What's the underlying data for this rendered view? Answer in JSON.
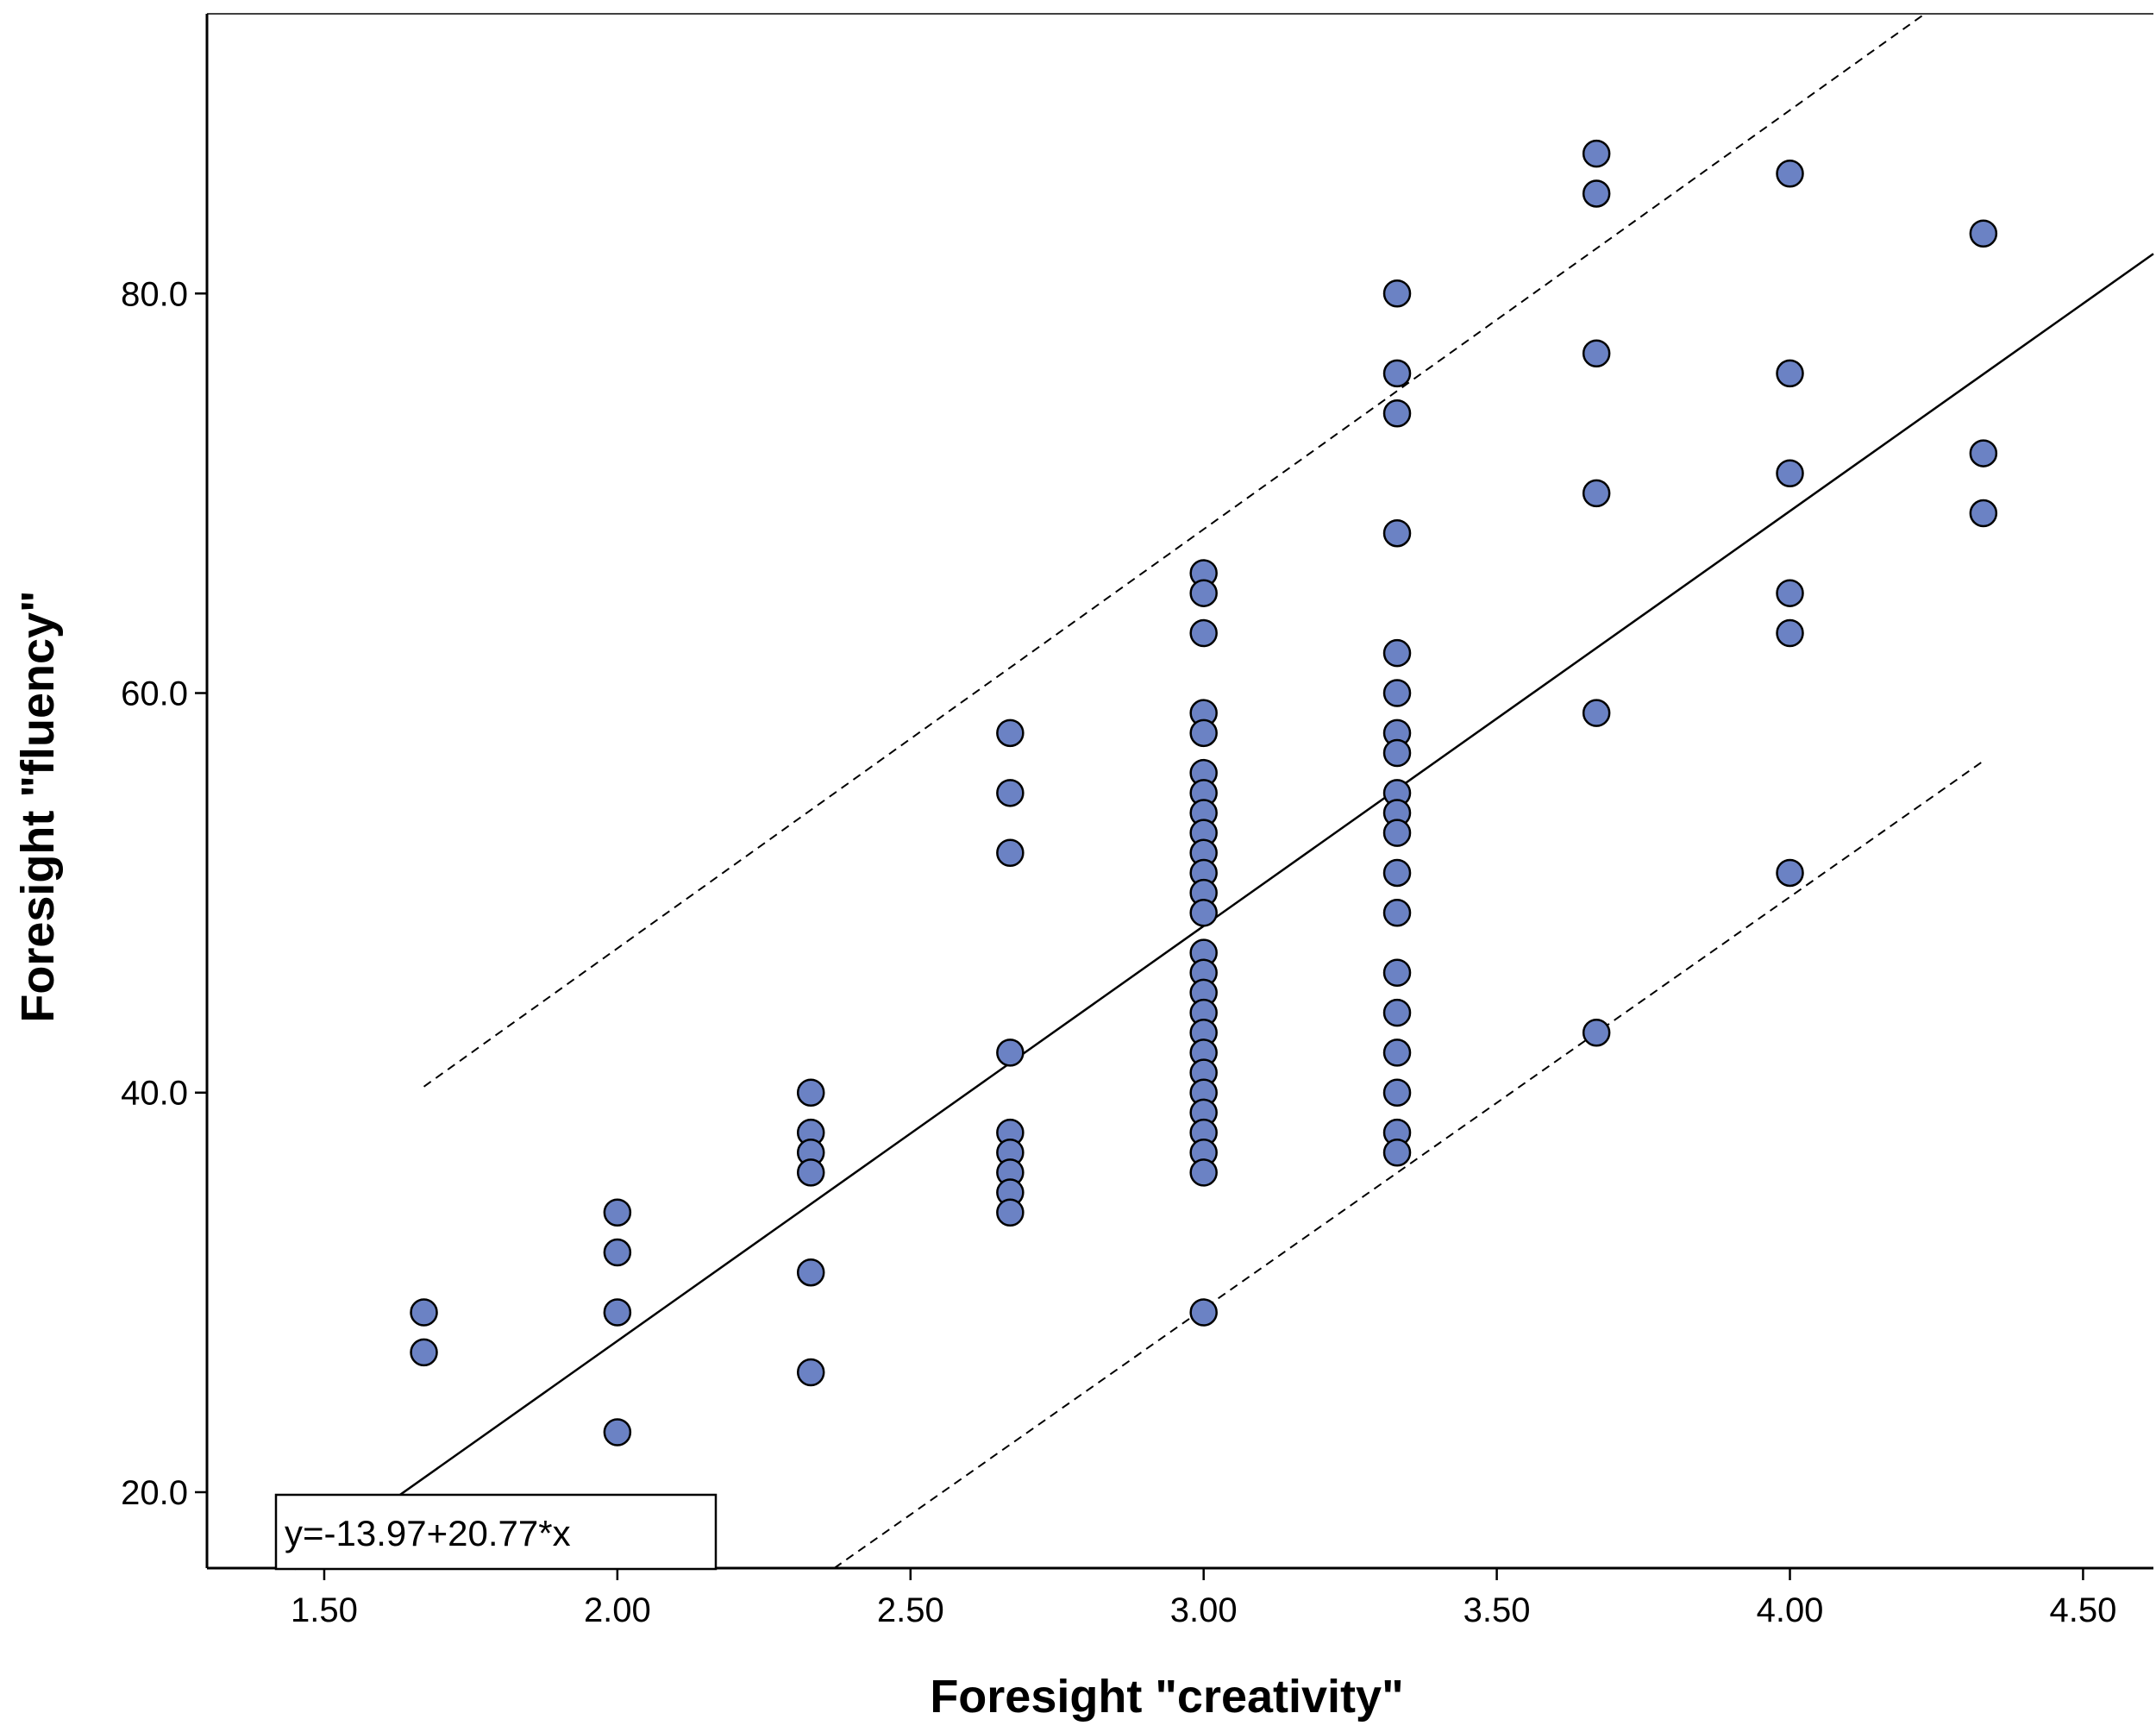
{
  "chart_data": {
    "type": "scatter",
    "xlabel": "Foresight \"creativity\"",
    "ylabel": "Foresight \"fluency\"",
    "xlim": [
      1.3,
      4.62
    ],
    "ylim": [
      16.2,
      94.0
    ],
    "xticks": [
      1.5,
      2.0,
      2.5,
      3.0,
      3.5,
      4.0,
      4.5
    ],
    "yticks": [
      20.0,
      40.0,
      60.0,
      80.0
    ],
    "xtick_labels": [
      "1.50",
      "2.00",
      "2.50",
      "3.00",
      "3.50",
      "4.00",
      "4.50"
    ],
    "ytick_labels": [
      "20.0",
      "40.0",
      "60.0",
      "80.0"
    ],
    "grid": false,
    "marker_color": "#6b82c4",
    "points": [
      {
        "x": 1.67,
        "y": 29
      },
      {
        "x": 1.67,
        "y": 27
      },
      {
        "x": 2.0,
        "y": 34
      },
      {
        "x": 2.0,
        "y": 32
      },
      {
        "x": 2.0,
        "y": 29
      },
      {
        "x": 2.0,
        "y": 23
      },
      {
        "x": 2.33,
        "y": 40
      },
      {
        "x": 2.33,
        "y": 38
      },
      {
        "x": 2.33,
        "y": 37
      },
      {
        "x": 2.33,
        "y": 36
      },
      {
        "x": 2.33,
        "y": 31
      },
      {
        "x": 2.33,
        "y": 26
      },
      {
        "x": 2.67,
        "y": 58
      },
      {
        "x": 2.67,
        "y": 55
      },
      {
        "x": 2.67,
        "y": 52
      },
      {
        "x": 2.67,
        "y": 42
      },
      {
        "x": 2.67,
        "y": 38
      },
      {
        "x": 2.67,
        "y": 37
      },
      {
        "x": 2.67,
        "y": 36
      },
      {
        "x": 2.67,
        "y": 35
      },
      {
        "x": 2.67,
        "y": 34
      },
      {
        "x": 3.0,
        "y": 66
      },
      {
        "x": 3.0,
        "y": 65
      },
      {
        "x": 3.0,
        "y": 63
      },
      {
        "x": 3.0,
        "y": 59
      },
      {
        "x": 3.0,
        "y": 58
      },
      {
        "x": 3.0,
        "y": 56
      },
      {
        "x": 3.0,
        "y": 55
      },
      {
        "x": 3.0,
        "y": 54
      },
      {
        "x": 3.0,
        "y": 53
      },
      {
        "x": 3.0,
        "y": 52
      },
      {
        "x": 3.0,
        "y": 51
      },
      {
        "x": 3.0,
        "y": 50
      },
      {
        "x": 3.0,
        "y": 49
      },
      {
        "x": 3.0,
        "y": 47
      },
      {
        "x": 3.0,
        "y": 46
      },
      {
        "x": 3.0,
        "y": 45
      },
      {
        "x": 3.0,
        "y": 44
      },
      {
        "x": 3.0,
        "y": 43
      },
      {
        "x": 3.0,
        "y": 42
      },
      {
        "x": 3.0,
        "y": 41
      },
      {
        "x": 3.0,
        "y": 40
      },
      {
        "x": 3.0,
        "y": 39
      },
      {
        "x": 3.0,
        "y": 38
      },
      {
        "x": 3.0,
        "y": 37
      },
      {
        "x": 3.0,
        "y": 36
      },
      {
        "x": 3.0,
        "y": 29
      },
      {
        "x": 3.33,
        "y": 80
      },
      {
        "x": 3.33,
        "y": 76
      },
      {
        "x": 3.33,
        "y": 74
      },
      {
        "x": 3.33,
        "y": 68
      },
      {
        "x": 3.33,
        "y": 62
      },
      {
        "x": 3.33,
        "y": 60
      },
      {
        "x": 3.33,
        "y": 58
      },
      {
        "x": 3.33,
        "y": 57
      },
      {
        "x": 3.33,
        "y": 55
      },
      {
        "x": 3.33,
        "y": 54
      },
      {
        "x": 3.33,
        "y": 53
      },
      {
        "x": 3.33,
        "y": 51
      },
      {
        "x": 3.33,
        "y": 49
      },
      {
        "x": 3.33,
        "y": 46
      },
      {
        "x": 3.33,
        "y": 44
      },
      {
        "x": 3.33,
        "y": 42
      },
      {
        "x": 3.33,
        "y": 40
      },
      {
        "x": 3.33,
        "y": 38
      },
      {
        "x": 3.33,
        "y": 37
      },
      {
        "x": 3.67,
        "y": 87
      },
      {
        "x": 3.67,
        "y": 85
      },
      {
        "x": 3.67,
        "y": 77
      },
      {
        "x": 3.67,
        "y": 70
      },
      {
        "x": 3.67,
        "y": 59
      },
      {
        "x": 3.67,
        "y": 43
      },
      {
        "x": 4.0,
        "y": 86
      },
      {
        "x": 4.0,
        "y": 76
      },
      {
        "x": 4.0,
        "y": 71
      },
      {
        "x": 4.0,
        "y": 65
      },
      {
        "x": 4.0,
        "y": 63
      },
      {
        "x": 4.0,
        "y": 51
      },
      {
        "x": 4.33,
        "y": 83
      },
      {
        "x": 4.33,
        "y": 72
      },
      {
        "x": 4.33,
        "y": 69
      }
    ],
    "fit_line": {
      "intercept": -13.97,
      "slope": 20.77,
      "x_range": [
        1.45,
        4.62
      ]
    },
    "prediction_interval": {
      "upper": [
        [
          1.67,
          40.3
        ],
        [
          4.23,
          94.0
        ]
      ],
      "lower": [
        [
          2.37,
          16.2
        ],
        [
          4.33,
          56.6
        ]
      ]
    },
    "equation_label": "y=-13.97+20.77*x"
  }
}
